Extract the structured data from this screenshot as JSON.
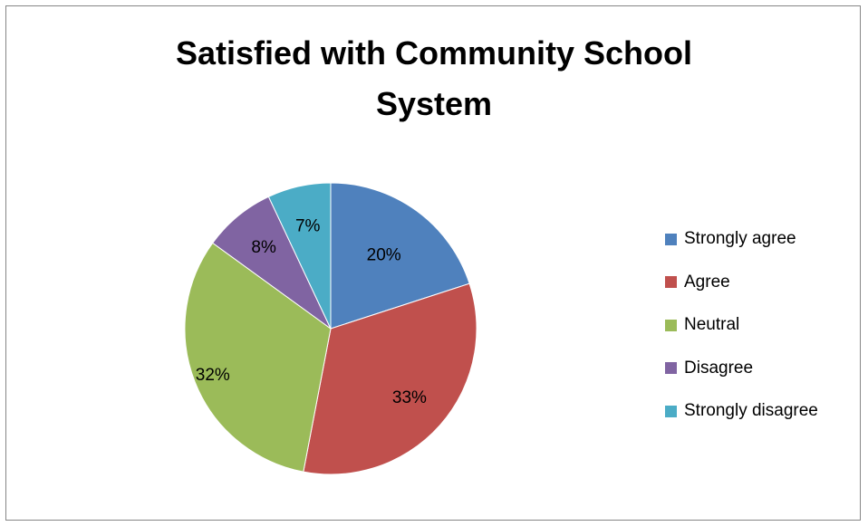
{
  "chart_data": {
    "type": "pie",
    "title": [
      "Satisfied with Community School",
      "System"
    ],
    "categories": [
      "Strongly agree",
      "Agree",
      "Neutral",
      "Disagree",
      "Strongly disagree"
    ],
    "values": [
      20,
      33,
      32,
      8,
      7
    ],
    "labels": [
      "20%",
      "33%",
      "32%",
      "8%",
      "7%"
    ],
    "colors": [
      "#4F81BD",
      "#C0504D",
      "#9BBB59",
      "#8064A2",
      "#4BACC6"
    ],
    "legend_position": "right"
  }
}
